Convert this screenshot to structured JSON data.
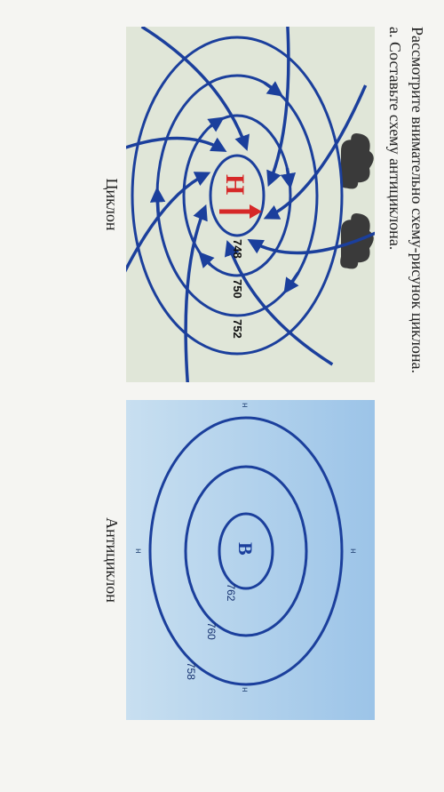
{
  "text": {
    "line1": "Рассмотрите внимательно схему-рисунок циклона.",
    "line2": "а. Составьте схему антициклона.",
    "caption_cyclone": "Циклон",
    "caption_anticyclone": "Антициклон"
  },
  "cyclone": {
    "type": "diagram",
    "center_label": "Н",
    "center_label_color": "#d62828",
    "center_arrow_color": "#d62828",
    "isobar_color": "#1b3f9c",
    "arrow_color": "#1b3f9c",
    "background_color": "#e0e6d8",
    "cloud_color": "#3a3a3a",
    "isobar_values": [
      "748",
      "750",
      "752"
    ],
    "isobar_rx": [
      45,
      90,
      135,
      178
    ],
    "isobar_ry": [
      30,
      60,
      90,
      118
    ],
    "value_fontsize": 13,
    "center_fontsize": 30,
    "stroke_width": 3,
    "arrow_stroke_width": 3.5
  },
  "anticyclone": {
    "type": "diagram",
    "center_label": "В",
    "center_label_color": "#1b3f9c",
    "isobar_color": "#1b3f9c",
    "background_top": "#9cc4e8",
    "background_bottom": "#c8dff0",
    "isobar_values": [
      "762",
      "760",
      "758"
    ],
    "isobar_rx": [
      42,
      95,
      150
    ],
    "isobar_ry": [
      30,
      68,
      108
    ],
    "value_fontsize": 12,
    "center_fontsize": 22,
    "stroke_width": 3,
    "compass_label": "н",
    "compass_color": "#2a4a7a",
    "compass_fontsize": 10
  }
}
